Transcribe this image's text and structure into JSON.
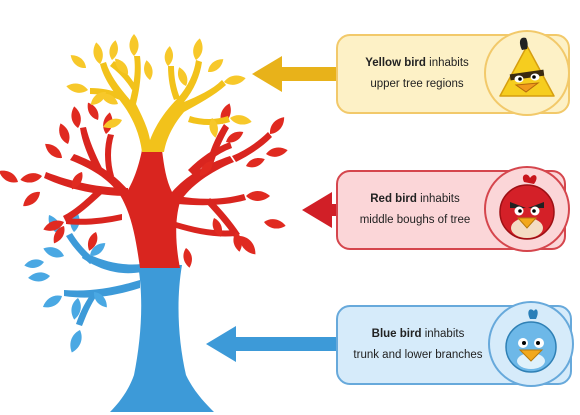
{
  "callouts": [
    {
      "id": "yellow",
      "bold": "Yellow bird",
      "rest": " inhabits",
      "line2": "upper tree regions",
      "fill": "#fdf1c6",
      "border": "#f2c96a",
      "arrow": "#e8b21a",
      "bird_icon": "yellow-bird-icon"
    },
    {
      "id": "red",
      "bold": "Red bird",
      "rest": " inhabits",
      "line2": "middle boughs of tree",
      "fill": "#fbd6d8",
      "border": "#d5464d",
      "arrow": "#d11f27",
      "bird_icon": "red-bird-icon"
    },
    {
      "id": "blue",
      "bold": "Blue bird",
      "rest": " inhabits",
      "line2": "trunk and lower branches",
      "fill": "#d6ebfa",
      "border": "#67a9db",
      "arrow": "#3d9ad8",
      "bird_icon": "blue-bird-icon"
    }
  ],
  "tree": {
    "upper_color": "#f2c21b",
    "middle_color": "#d9251f",
    "lower_color": "#3d9ad8"
  }
}
